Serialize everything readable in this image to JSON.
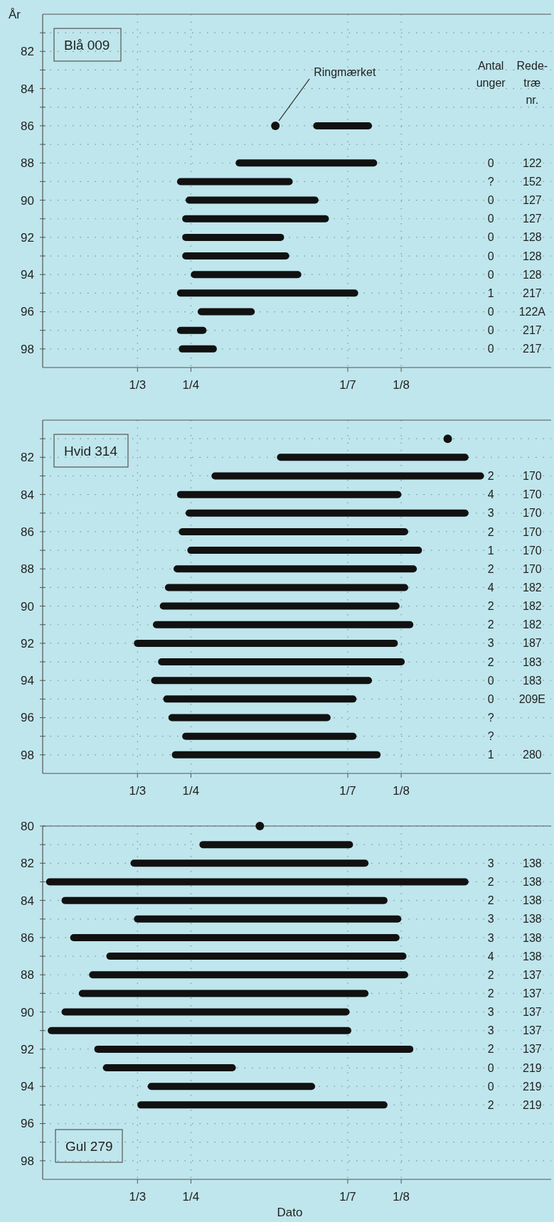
{
  "chart_data": [
    {
      "type": "line",
      "title": "Blå 009",
      "ylabel": "År",
      "xlim": [
        "--01-05",
        "--10-27"
      ],
      "ylim": [
        99,
        80
      ],
      "xticks": [
        {
          "value": "--03-01",
          "label": "1/3"
        },
        {
          "value": "--04-01",
          "label": "1/4"
        },
        {
          "value": "--07-01",
          "label": "1/7"
        },
        {
          "value": "--08-01",
          "label": "1/8"
        }
      ],
      "yticks": [
        {
          "value": 81,
          "label": null
        },
        82,
        {
          "value": 83,
          "label": null
        },
        84,
        {
          "value": 85,
          "label": null
        },
        86,
        {
          "value": 87,
          "label": null
        },
        88,
        {
          "value": 89,
          "label": null
        },
        90,
        {
          "value": 91,
          "label": null
        },
        92,
        {
          "value": 93,
          "label": null
        },
        94,
        {
          "value": 95,
          "label": null
        },
        96,
        {
          "value": 97,
          "label": null
        },
        98
      ],
      "grid": true,
      "series": [
        {
          "color": "#111111",
          "x": [
            "--06-13",
            "--07-13"
          ],
          "values": [
            86,
            86
          ]
        },
        {
          "color": "#111111",
          "x": [
            "--04-29",
            "--07-16"
          ],
          "values": [
            88,
            88
          ]
        },
        {
          "color": "#111111",
          "x": [
            "--03-26",
            "--05-28"
          ],
          "values": [
            89,
            89
          ]
        },
        {
          "color": "#111111",
          "x": [
            "--03-31",
            "--06-12"
          ],
          "values": [
            90,
            90
          ]
        },
        {
          "color": "#111111",
          "x": [
            "--03-29",
            "--06-18"
          ],
          "values": [
            91,
            91
          ]
        },
        {
          "color": "#111111",
          "x": [
            "--03-29",
            "--05-23"
          ],
          "values": [
            92,
            92
          ]
        },
        {
          "color": "#111111",
          "x": [
            "--03-29",
            "--05-26"
          ],
          "values": [
            93,
            93
          ]
        },
        {
          "color": "#111111",
          "x": [
            "--04-03",
            "--06-02"
          ],
          "values": [
            94,
            94
          ]
        },
        {
          "color": "#111111",
          "x": [
            "--03-26",
            "--07-05"
          ],
          "values": [
            95,
            95
          ]
        },
        {
          "color": "#111111",
          "x": [
            "--04-07",
            "--05-06"
          ],
          "values": [
            96,
            96
          ]
        },
        {
          "color": "#111111",
          "x": [
            "--03-26",
            "--04-08"
          ],
          "values": [
            97,
            97
          ]
        },
        {
          "color": "#111111",
          "x": [
            "--03-27",
            "--04-14"
          ],
          "values": [
            98,
            98
          ]
        },
        {
          "type": "scatter",
          "marker": "circle",
          "color": "#111111",
          "x": [
            "--05-20"
          ],
          "values": [
            86
          ]
        }
      ],
      "annotations": [
        {
          "text": "Ringmærket",
          "x": "--05-20",
          "y": 86
        },
        "Antal\nunger",
        "Rede-\ntræ\nnr.",
        "0\n?\n0\n0\n0\n0\n0\n1\n0\n0\n0",
        "122\n152\n127\n127\n128\n128\n128\n217\n122A\n217\n217"
      ]
    },
    {
      "type": "line",
      "title": "Hvid 314",
      "xlim": [
        "--01-05",
        "--10-27"
      ],
      "ylim": [
        99,
        80
      ],
      "xticks": [
        {
          "value": "--03-01",
          "label": "1/3"
        },
        {
          "value": "--04-01",
          "label": "1/4"
        },
        {
          "value": "--07-01",
          "label": "1/7"
        },
        {
          "value": "--08-01",
          "label": "1/8"
        }
      ],
      "yticks": [
        {
          "value": 81,
          "label": null
        },
        82,
        {
          "value": 83,
          "label": null
        },
        84,
        {
          "value": 85,
          "label": null
        },
        86,
        {
          "value": 87,
          "label": null
        },
        88,
        {
          "value": 89,
          "label": null
        },
        90,
        {
          "value": 91,
          "label": null
        },
        92,
        {
          "value": 93,
          "label": null
        },
        94,
        {
          "value": 95,
          "label": null
        },
        96,
        {
          "value": 97,
          "label": null
        },
        98
      ],
      "grid": true,
      "series": [
        {
          "color": "#111111",
          "x": [
            "--05-23",
            "--09-07"
          ],
          "values": [
            82,
            82
          ]
        },
        {
          "color": "#111111",
          "x": [
            "--04-15",
            "--09-16"
          ],
          "values": [
            83,
            83
          ]
        },
        {
          "color": "#111111",
          "x": [
            "--03-26",
            "--07-30"
          ],
          "values": [
            84,
            84
          ]
        },
        {
          "color": "#111111",
          "x": [
            "--03-31",
            "--09-07"
          ],
          "values": [
            85,
            85
          ]
        },
        {
          "color": "#111111",
          "x": [
            "--03-27",
            "--08-03"
          ],
          "values": [
            86,
            86
          ]
        },
        {
          "color": "#111111",
          "x": [
            "--04-01",
            "--08-11"
          ],
          "values": [
            87,
            87
          ]
        },
        {
          "color": "#111111",
          "x": [
            "--03-24",
            "--08-08"
          ],
          "values": [
            88,
            88
          ]
        },
        {
          "color": "#111111",
          "x": [
            "--03-19",
            "--08-03"
          ],
          "values": [
            89,
            89
          ]
        },
        {
          "color": "#111111",
          "x": [
            "--03-16",
            "--07-29"
          ],
          "values": [
            90,
            90
          ]
        },
        {
          "color": "#111111",
          "x": [
            "--03-12",
            "--08-06"
          ],
          "values": [
            91,
            91
          ]
        },
        {
          "color": "#111111",
          "x": [
            "--03-01",
            "--07-28"
          ],
          "values": [
            92,
            92
          ]
        },
        {
          "color": "#111111",
          "x": [
            "--03-15",
            "--08-01"
          ],
          "values": [
            93,
            93
          ]
        },
        {
          "color": "#111111",
          "x": [
            "--03-11",
            "--07-13"
          ],
          "values": [
            94,
            94
          ]
        },
        {
          "color": "#111111",
          "x": [
            "--03-18",
            "--07-04"
          ],
          "values": [
            95,
            95
          ]
        },
        {
          "color": "#111111",
          "x": [
            "--03-21",
            "--06-19"
          ],
          "values": [
            96,
            96
          ]
        },
        {
          "color": "#111111",
          "x": [
            "--03-29",
            "--07-04"
          ],
          "values": [
            97,
            97
          ]
        },
        {
          "color": "#111111",
          "x": [
            "--03-23",
            "--07-18"
          ],
          "values": [
            98,
            98
          ]
        },
        {
          "type": "scatter",
          "marker": "circle",
          "color": "#111111",
          "x": [
            "--08-28"
          ],
          "values": [
            81
          ]
        }
      ],
      "annotations": [
        "2\n4\n3\n2\n1\n2\n4\n2\n2\n3\n2\n0\n0\n?\n?\n1",
        "170\n170\n170\n170\n170\n170\n182\n182\n182\n187\n183\n183\n209E\n\n\n280"
      ]
    },
    {
      "type": "line",
      "title": "Gul 279",
      "xlabel": "Dato",
      "xlim": [
        "--01-05",
        "--10-27"
      ],
      "ylim": [
        99,
        80
      ],
      "xticks": [
        {
          "value": "--03-01",
          "label": "1/3"
        },
        {
          "value": "--04-01",
          "label": "1/4"
        },
        {
          "value": "--07-01",
          "label": "1/7"
        },
        {
          "value": "--08-01",
          "label": "1/8"
        }
      ],
      "yticks": [
        80,
        {
          "value": 81,
          "label": null
        },
        82,
        {
          "value": 83,
          "label": null
        },
        84,
        {
          "value": 85,
          "label": null
        },
        86,
        {
          "value": 87,
          "label": null
        },
        88,
        {
          "value": 89,
          "label": null
        },
        90,
        {
          "value": 91,
          "label": null
        },
        92,
        {
          "value": 93,
          "label": null
        },
        94,
        {
          "value": 95,
          "label": null
        },
        96,
        {
          "value": 97,
          "label": null
        },
        98
      ],
      "grid": true,
      "series": [
        {
          "color": "#111111",
          "x": [
            "--04-08",
            "--07-02"
          ],
          "values": [
            81,
            81
          ]
        },
        {
          "color": "#111111",
          "x": [
            "--02-27",
            "--07-11"
          ],
          "values": [
            82,
            82
          ]
        },
        {
          "color": "#111111",
          "x": [
            "--01-09",
            "--09-07"
          ],
          "values": [
            83,
            83
          ]
        },
        {
          "color": "#111111",
          "x": [
            "--01-18",
            "--07-22"
          ],
          "values": [
            84,
            84
          ]
        },
        {
          "color": "#111111",
          "x": [
            "--03-01",
            "--07-30"
          ],
          "values": [
            85,
            85
          ]
        },
        {
          "color": "#111111",
          "x": [
            "--01-23",
            "--07-29"
          ],
          "values": [
            86,
            86
          ]
        },
        {
          "color": "#111111",
          "x": [
            "--02-13",
            "--08-02"
          ],
          "values": [
            87,
            87
          ]
        },
        {
          "color": "#111111",
          "x": [
            "--02-03",
            "--08-03"
          ],
          "values": [
            88,
            88
          ]
        },
        {
          "color": "#111111",
          "x": [
            "--01-28",
            "--07-11"
          ],
          "values": [
            89,
            89
          ]
        },
        {
          "color": "#111111",
          "x": [
            "--01-18",
            "--06-30"
          ],
          "values": [
            90,
            90
          ]
        },
        {
          "color": "#111111",
          "x": [
            "--01-10",
            "--07-01"
          ],
          "values": [
            91,
            91
          ]
        },
        {
          "color": "#111111",
          "x": [
            "--02-06",
            "--08-06"
          ],
          "values": [
            92,
            92
          ]
        },
        {
          "color": "#111111",
          "x": [
            "--02-11",
            "--04-25"
          ],
          "values": [
            93,
            93
          ]
        },
        {
          "color": "#111111",
          "x": [
            "--03-09",
            "--06-10"
          ],
          "values": [
            94,
            94
          ]
        },
        {
          "color": "#111111",
          "x": [
            "--03-03",
            "--07-22"
          ],
          "values": [
            95,
            95
          ]
        },
        {
          "type": "scatter",
          "marker": "circle",
          "color": "#111111",
          "x": [
            "--05-11"
          ],
          "values": [
            80
          ]
        }
      ],
      "annotations": [
        "3\n2\n2\n3\n3\n4\n2\n2\n3\n3\n2\n0\n0\n2",
        "138\n138\n138\n138\n138\n138\n137\n137\n137\n137\n137\n219\n219\n219"
      ]
    }
  ]
}
